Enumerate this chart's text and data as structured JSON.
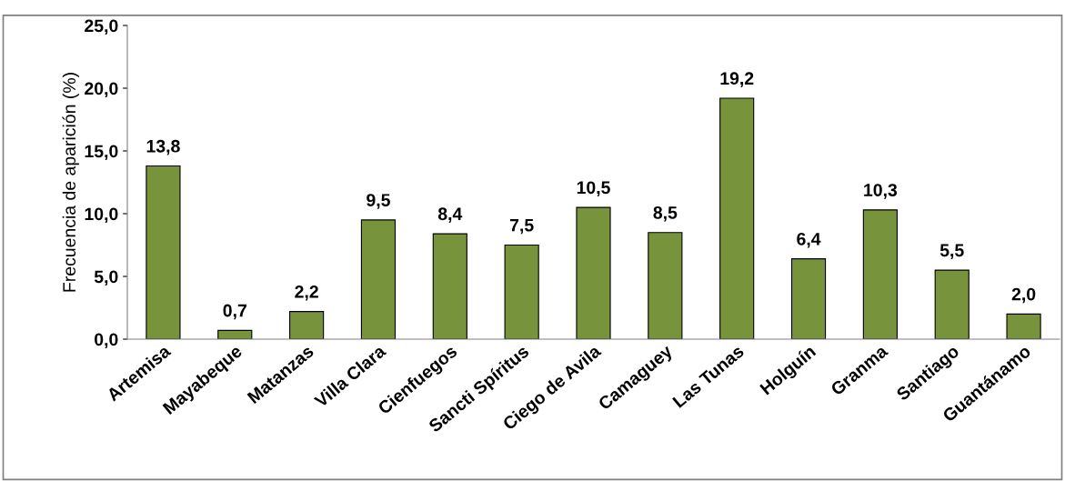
{
  "chart_data": {
    "type": "bar",
    "ylabel": "Frecuencia de aparición (%)",
    "categories": [
      "Artemisa",
      "Mayabeque",
      "Matanzas",
      "Villa Clara",
      "Cienfuegos",
      "Sancti Spíritus",
      "Ciego de Avila",
      "Camaguey",
      "Las Tunas",
      "Holguín",
      "Granma",
      "Santiago",
      "Guantánamo"
    ],
    "values": [
      13.8,
      0.7,
      2.2,
      9.5,
      8.4,
      7.5,
      10.5,
      8.5,
      19.2,
      6.4,
      10.3,
      5.5,
      2.0
    ],
    "value_labels": [
      "13,8",
      "0,7",
      "2,2",
      "9,5",
      "8,4",
      "7,5",
      "10,5",
      "8,5",
      "19,2",
      "6,4",
      "10,3",
      "5,5",
      "2,0"
    ],
    "color": "#77933c",
    "ylim": [
      0,
      25
    ],
    "yticks": [
      {
        "value": 0,
        "label": "0,0"
      },
      {
        "value": 5,
        "label": "5,0"
      },
      {
        "value": 10,
        "label": "10,0"
      },
      {
        "value": 15,
        "label": "15,0"
      },
      {
        "value": 20,
        "label": "20,0"
      },
      {
        "value": 25,
        "label": "25,0"
      }
    ],
    "grid": false,
    "legend": false
  }
}
